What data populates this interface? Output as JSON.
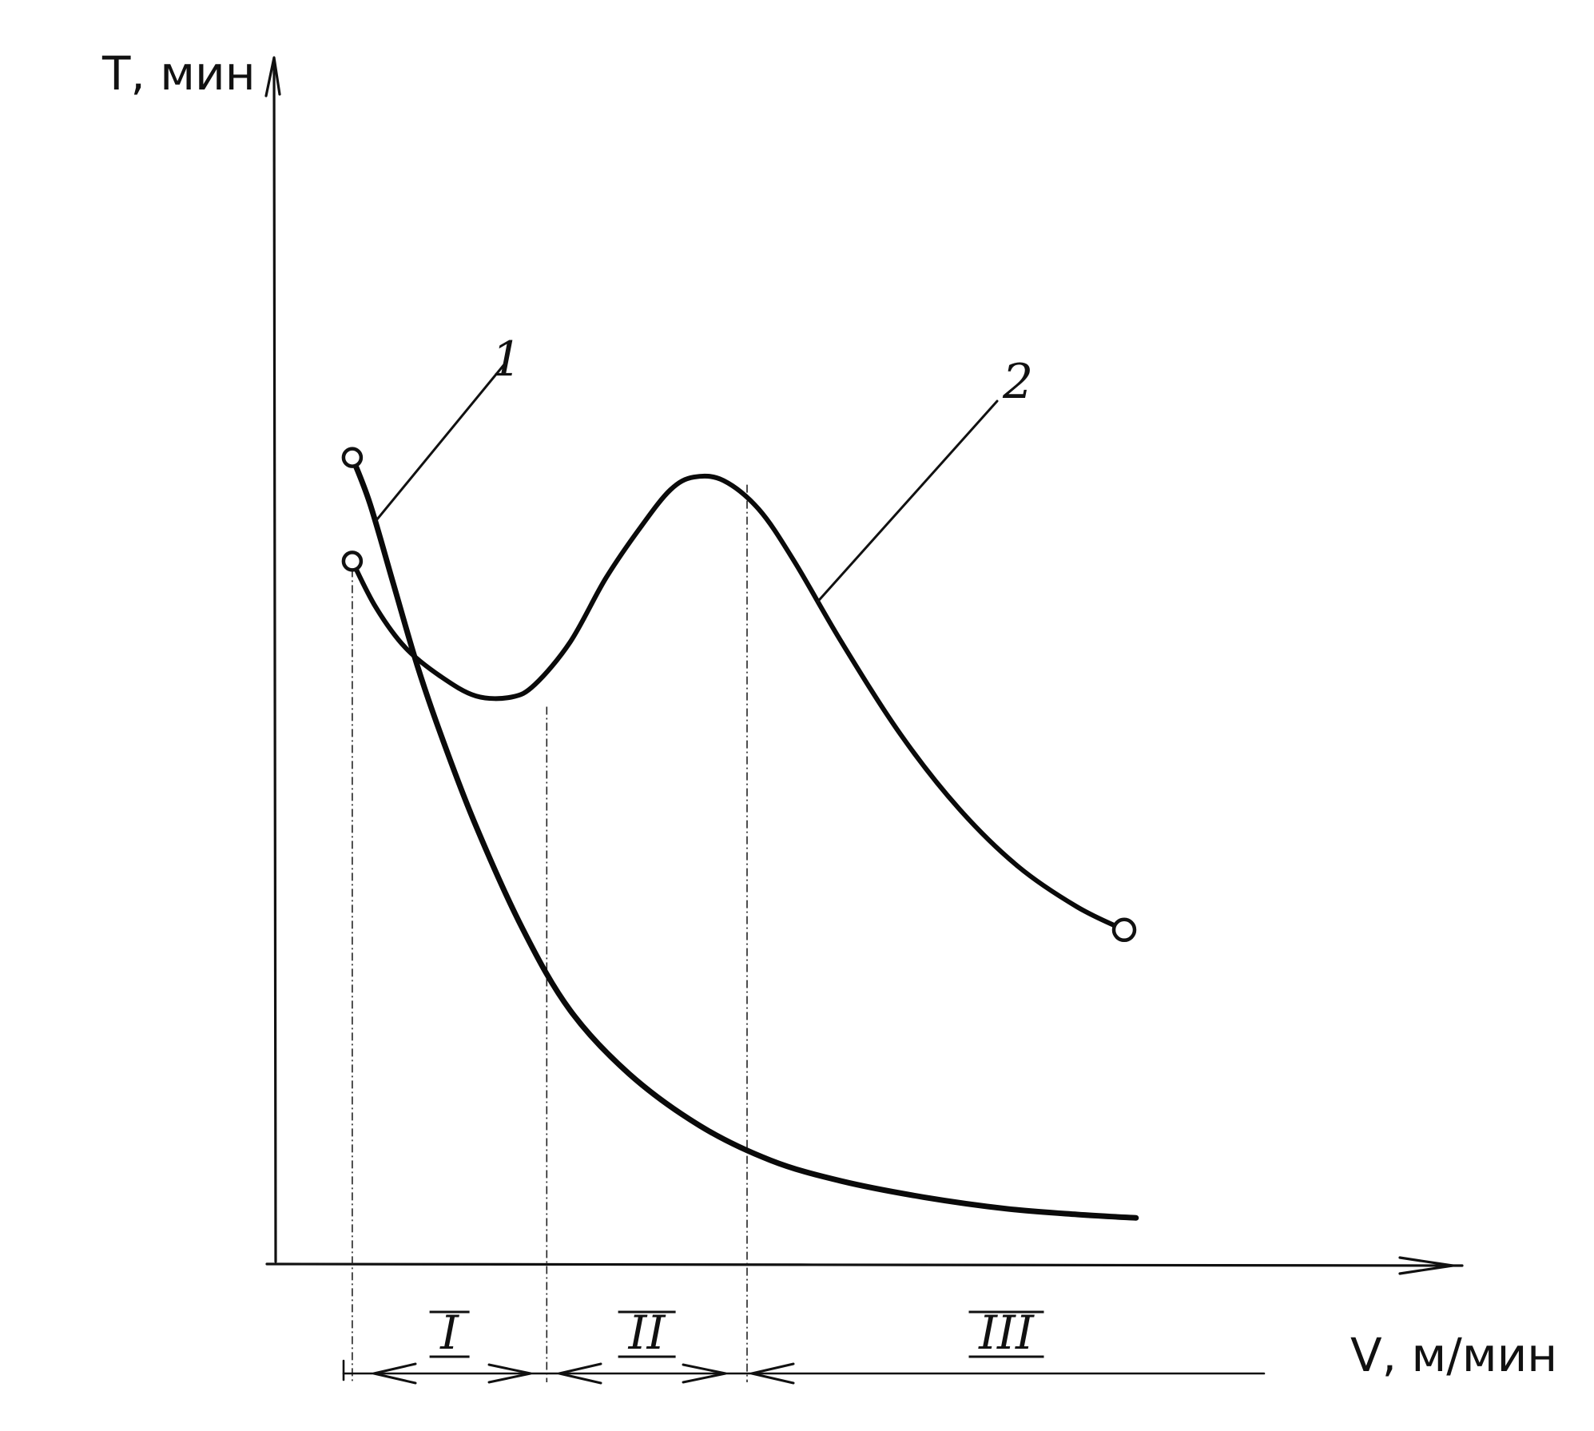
{
  "chart_data": {
    "type": "line",
    "title": "",
    "xlabel": "V, м/мин",
    "ylabel": "T, мин",
    "xlim": [
      0,
      100
    ],
    "ylim": [
      0,
      100
    ],
    "grid": false,
    "legend": "none",
    "series": [
      {
        "label": "1",
        "points": [
          [
            6.5,
            70
          ],
          [
            8,
            66
          ],
          [
            10,
            59
          ],
          [
            12,
            52
          ],
          [
            14,
            46
          ],
          [
            17,
            38
          ],
          [
            21,
            29
          ],
          [
            25,
            22
          ],
          [
            30,
            16.5
          ],
          [
            36,
            12
          ],
          [
            42,
            9
          ],
          [
            48,
            7.2
          ],
          [
            55,
            5.8
          ],
          [
            62,
            4.8
          ],
          [
            68,
            4.3
          ],
          [
            73,
            4.0
          ]
        ]
      },
      {
        "label": "2",
        "points": [
          [
            6.5,
            61
          ],
          [
            8.5,
            57
          ],
          [
            11,
            53.5
          ],
          [
            14,
            51
          ],
          [
            17,
            49.3
          ],
          [
            20,
            49.2
          ],
          [
            22,
            50.3
          ],
          [
            25,
            54
          ],
          [
            28,
            59.5
          ],
          [
            31,
            64
          ],
          [
            33.5,
            67.2
          ],
          [
            35.5,
            68.3
          ],
          [
            38,
            68
          ],
          [
            41,
            65.5
          ],
          [
            44,
            61
          ],
          [
            48,
            54
          ],
          [
            53,
            46
          ],
          [
            58,
            39.5
          ],
          [
            63,
            34.5
          ],
          [
            68,
            31
          ],
          [
            72,
            29
          ]
        ]
      }
    ],
    "annotations": {
      "curve_labels": [
        "1",
        "2"
      ],
      "zone_labels": [
        "I",
        "II",
        "III"
      ],
      "guide_lines_x": [
        6.5,
        23,
        40
      ]
    }
  }
}
